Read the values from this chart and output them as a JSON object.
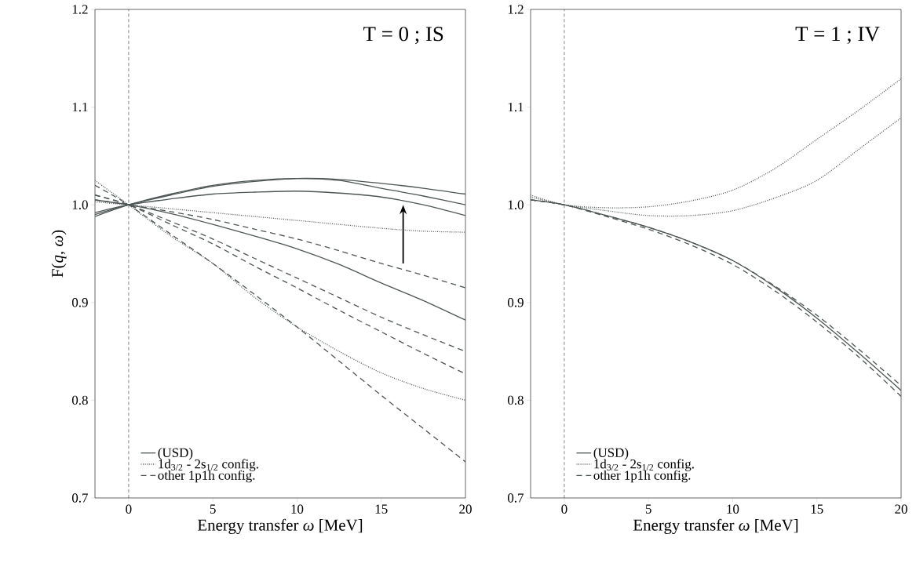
{
  "chart_data": [
    {
      "type": "line",
      "xlabel": "Energy transfer *ω* [MeV]",
      "ylabel": "F(*q*, *ω*)",
      "annotations": [
        "T = 0 ; IS"
      ],
      "x": [
        -2,
        0,
        2.5,
        5,
        7.5,
        10,
        12.5,
        15,
        17.5,
        20
      ],
      "xlim": [
        -2,
        20
      ],
      "ylim": [
        0.7,
        1.2
      ],
      "xticks": [
        0,
        5,
        10,
        15,
        20
      ],
      "yticks": [
        0.7,
        0.8,
        0.9,
        {
          "value": 1.0,
          "label": "1.0"
        },
        1.1,
        1.2
      ],
      "legend": "bottom left",
      "ref_lines": [
        {
          "axis": "x",
          "value": 0,
          "line_style": "dashed",
          "color": "#333333"
        }
      ],
      "series": [
        {
          "name": "(USD)",
          "color": "#4d5555",
          "line_style": "solid",
          "values": [
            0.99,
            1.0,
            1.01,
            1.019,
            1.024,
            1.027,
            1.026,
            1.022,
            1.017,
            1.011
          ]
        },
        {
          "name": "1d$_{3/2}$ - 2s$_{1/2}$ config.",
          "color": "#4d5555",
          "line_style": "dotted",
          "values": [
            1.003,
            1.0,
            0.996,
            0.992,
            0.988,
            0.984,
            0.98,
            0.976,
            0.973,
            0.972
          ]
        },
        {
          "name": "other 1p1h config.",
          "color": "#4d5555",
          "line_style": "dashed",
          "values": [
            1.005,
            1.0,
            0.993,
            0.985,
            0.975,
            0.965,
            0.953,
            0.94,
            0.928,
            0.915
          ]
        },
        {
          "color": "#4d5555",
          "line_style": "solid",
          "values": [
            0.988,
            1.0,
            1.011,
            1.02,
            1.025,
            1.027,
            1.025,
            1.017,
            1.009,
            1.0
          ]
        },
        {
          "color": "#4d5555",
          "line_style": "solid",
          "values": [
            0.992,
            1.0,
            1.006,
            1.011,
            1.013,
            1.014,
            1.012,
            1.008,
            1.0,
            0.989
          ]
        },
        {
          "color": "#4d5555",
          "line_style": "solid",
          "values": [
            1.005,
            1.0,
            0.991,
            0.98,
            0.968,
            0.955,
            0.939,
            0.92,
            0.902,
            0.882
          ]
        },
        {
          "color": "#4d5555",
          "line_style": "dotted",
          "values": [
            1.025,
            1.0,
            0.968,
            0.94,
            0.905,
            0.875,
            0.85,
            0.828,
            0.812,
            0.8
          ]
        },
        {
          "color": "#4d5555",
          "line_style": "dashed",
          "values": [
            1.01,
            1.0,
            0.983,
            0.965,
            0.945,
            0.925,
            0.905,
            0.885,
            0.867,
            0.85
          ]
        },
        {
          "color": "#4d5555",
          "line_style": "dashed",
          "values": [
            1.01,
            1.0,
            0.98,
            0.96,
            0.937,
            0.915,
            0.892,
            0.87,
            0.848,
            0.827
          ]
        },
        {
          "color": "#4d5555",
          "line_style": "dashed",
          "values": [
            1.02,
            1.0,
            0.97,
            0.94,
            0.908,
            0.875,
            0.84,
            0.805,
            0.771,
            0.737
          ]
        }
      ]
    },
    {
      "type": "line",
      "xlabel": "Energy transfer *ω* [MeV]",
      "annotations": [
        "T = 1 ; IV"
      ],
      "x": [
        -2,
        0,
        2.5,
        5,
        7.5,
        10,
        12.5,
        15,
        17.5,
        20
      ],
      "xlim": [
        -2,
        20
      ],
      "ylim": [
        0.7,
        1.2
      ],
      "xticks": [
        0,
        5,
        10,
        15,
        20
      ],
      "yticks": [
        0.7,
        0.8,
        0.9,
        {
          "value": 1.0,
          "label": "1.0"
        },
        1.1,
        1.2
      ],
      "legend": "bottom left",
      "ref_lines": [
        {
          "axis": "x",
          "value": 0,
          "line_style": "dashed",
          "color": "#333333"
        }
      ],
      "series": [
        {
          "name": "(USD)",
          "color": "#4d5555",
          "line_style": "solid",
          "values": [
            1.005,
            1.0,
            0.989,
            0.977,
            0.962,
            0.943,
            0.916,
            0.884,
            0.848,
            0.81
          ]
        },
        {
          "name": "1d$_{3/2}$ - 2s$_{1/2}$ config.",
          "color": "#4d5555",
          "line_style": "dotted",
          "values": [
            1.01,
            1.0,
            0.997,
            0.998,
            1.004,
            1.015,
            1.037,
            1.067,
            1.097,
            1.129
          ]
        },
        {
          "name": "other 1p1h config.",
          "color": "#4d5555",
          "line_style": "dashed",
          "values": [
            1.005,
            1.0,
            0.989,
            0.977,
            0.962,
            0.943,
            0.917,
            0.887,
            0.852,
            0.815
          ]
        },
        {
          "color": "#4d5555",
          "line_style": "dotted",
          "values": [
            1.008,
            1.0,
            0.994,
            0.989,
            0.989,
            0.994,
            1.007,
            1.025,
            1.057,
            1.089
          ]
        },
        {
          "color": "#4d5555",
          "line_style": "dashed",
          "values": [
            1.005,
            1.0,
            0.988,
            0.975,
            0.959,
            0.939,
            0.912,
            0.88,
            0.844,
            0.804
          ]
        }
      ]
    }
  ]
}
